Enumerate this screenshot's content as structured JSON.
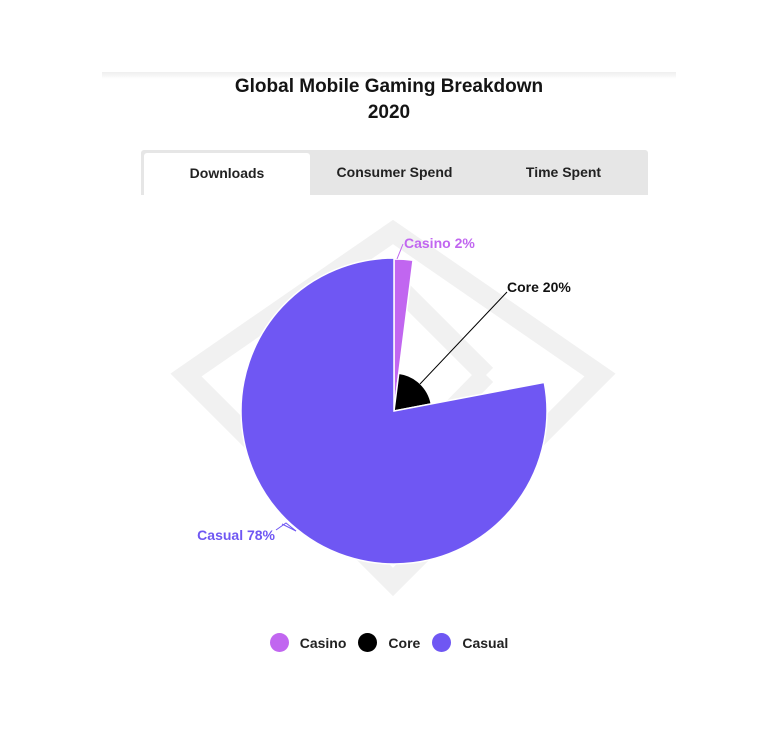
{
  "title_line1": "Global Mobile Gaming Breakdown",
  "title_line2": "2020",
  "tabs": [
    {
      "label": "Downloads",
      "active": true
    },
    {
      "label": "Consumer Spend",
      "active": false
    },
    {
      "label": "Time Spent",
      "active": false
    }
  ],
  "chart_data": {
    "type": "pie",
    "title": "Global Mobile Gaming Breakdown 2020",
    "slices": [
      {
        "label": "Casino",
        "value": 2,
        "display": "Casino 2%",
        "color": "#c166f0"
      },
      {
        "label": "Core",
        "value": 20,
        "display": "Core 20%",
        "color": "#000000"
      },
      {
        "label": "Casual",
        "value": 78,
        "display": "Casual 78%",
        "color": "#6f57f3"
      }
    ],
    "legend_position": "bottom"
  },
  "legend": [
    {
      "label": "Casino",
      "color": "#c166f0"
    },
    {
      "label": "Core",
      "color": "#000000"
    },
    {
      "label": "Casual",
      "color": "#6f57f3"
    }
  ]
}
